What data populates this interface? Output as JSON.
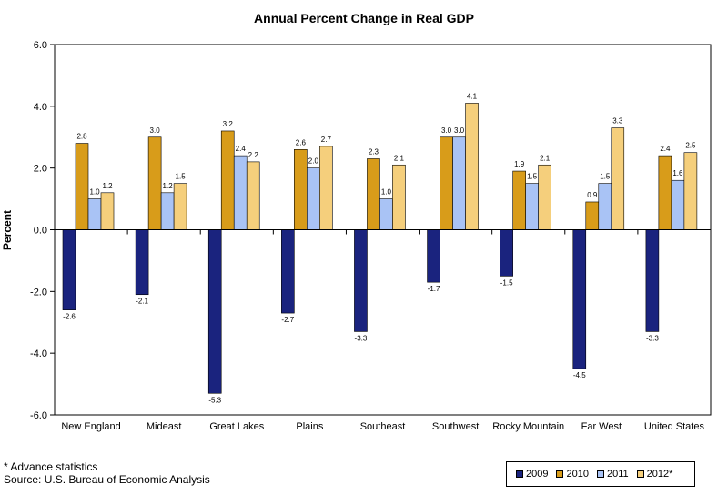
{
  "chart_data": {
    "type": "bar",
    "title": "Annual Percent Change in Real GDP",
    "ylabel": "Percent",
    "xlabel": "",
    "ylim": [
      -6,
      6
    ],
    "yticks": [
      "6.0",
      "4.0",
      "2.0",
      "0.0",
      "-2.0",
      "-4.0",
      "-6.0"
    ],
    "ytick_values": [
      6,
      4,
      2,
      0,
      -2,
      -4,
      -6
    ],
    "categories": [
      "New England",
      "Mideast",
      "Great Lakes",
      "Plains",
      "Southeast",
      "Southwest",
      "Rocky Mountain",
      "Far West",
      "United States"
    ],
    "series": [
      {
        "name": "2009",
        "color": "#1a237e",
        "values": [
          -2.6,
          -2.1,
          -5.3,
          -2.7,
          -3.3,
          -1.7,
          -1.5,
          -4.5,
          -3.3
        ],
        "labels": [
          "-2.6",
          "-2.1",
          "-5.3",
          "-2.7",
          "-3.3",
          "-1.7",
          "-1.5",
          "-4.5",
          "-3.3"
        ]
      },
      {
        "name": "2010",
        "color": "#d89c1a",
        "values": [
          2.8,
          3.0,
          3.2,
          2.6,
          2.3,
          3.0,
          1.9,
          0.9,
          2.4
        ],
        "labels": [
          "2.8",
          "3.0",
          "3.2",
          "2.6",
          "2.3",
          "3.0",
          "1.9",
          "0.9",
          "2.4"
        ]
      },
      {
        "name": "2011",
        "color": "#a9c3f5",
        "values": [
          1.0,
          1.2,
          2.4,
          2.0,
          1.0,
          3.0,
          1.5,
          1.5,
          1.6
        ],
        "labels": [
          "1.0",
          "1.2",
          "2.4",
          "2.0",
          "1.0",
          "3.0",
          "1.5",
          "1.5",
          "1.6"
        ]
      },
      {
        "name": "2012*",
        "color": "#f5cf7c",
        "values": [
          1.2,
          1.5,
          2.2,
          2.7,
          2.1,
          4.1,
          2.1,
          3.3,
          2.5
        ],
        "labels": [
          "1.2",
          "1.5",
          "2.2",
          "2.7",
          "2.1",
          "4.1",
          "2.1",
          "3.3",
          "2.5"
        ]
      }
    ],
    "grid": false,
    "legend_position": "bottom-right"
  },
  "footnotes": {
    "advance": "* Advance statistics",
    "source": "Source:  U.S. Bureau of Economic Analysis"
  }
}
